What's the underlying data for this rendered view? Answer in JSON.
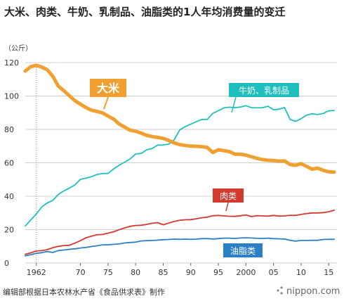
{
  "title": "大米、肉类、牛奶、乳制品、油脂类的1人年均消费量的变迁",
  "unit": "（公斤）",
  "source": "编辑部根据日本农林水产省《食品供求表》制作",
  "brand": "nippon.com",
  "chart_data": {
    "type": "line",
    "ylim": [
      0,
      120
    ],
    "xlim": [
      1960,
      2016.5
    ],
    "grid": true,
    "yticks": [
      0,
      20,
      40,
      60,
      80,
      100,
      120
    ],
    "x_tick_values": [
      1962,
      1970,
      1975,
      1980,
      1985,
      1990,
      1995,
      2000,
      2005,
      2010,
      2015
    ],
    "x_tick_labels": [
      "1962",
      "70",
      "75",
      "80",
      "85",
      "90",
      "95",
      "2000",
      "05",
      "10",
      "15"
    ],
    "x": [
      1960,
      1961,
      1962,
      1963,
      1964,
      1965,
      1966,
      1967,
      1968,
      1969,
      1970,
      1971,
      1972,
      1973,
      1974,
      1975,
      1976,
      1977,
      1978,
      1979,
      1980,
      1981,
      1982,
      1983,
      1984,
      1985,
      1986,
      1987,
      1988,
      1989,
      1990,
      1991,
      1992,
      1993,
      1994,
      1995,
      1996,
      1997,
      1998,
      1999,
      2000,
      2001,
      2002,
      2003,
      2004,
      2005,
      2006,
      2007,
      2008,
      2009,
      2010,
      2011,
      2012,
      2013,
      2014,
      2015,
      2016
    ],
    "series": [
      {
        "name": "大米",
        "color": "#f0a030",
        "values": [
          114.9,
          117.6,
          118.3,
          117.3,
          115.7,
          111.7,
          105.8,
          103.2,
          100.1,
          97.2,
          95.1,
          93.1,
          91.5,
          90.8,
          89.9,
          88.0,
          86.2,
          83.3,
          81.4,
          79.5,
          78.9,
          77.8,
          76.4,
          75.7,
          75.2,
          74.6,
          73.4,
          71.9,
          70.9,
          70.4,
          70.0,
          69.9,
          69.7,
          69.2,
          66.2,
          67.8,
          67.3,
          66.7,
          65.2,
          65.2,
          64.6,
          63.6,
          62.7,
          61.9,
          61.5,
          61.4,
          61.0,
          61.2,
          59.0,
          58.5,
          59.5,
          57.8,
          56.2,
          56.8,
          55.5,
          54.6,
          54.4
        ]
      },
      {
        "name": "牛奶、乳制品",
        "color": "#1fbfbf",
        "values": [
          22.2,
          25.8,
          29.4,
          33.6,
          36.0,
          37.5,
          41.1,
          43.2,
          44.9,
          46.8,
          50.1,
          50.8,
          51.7,
          53.0,
          53.6,
          53.6,
          56.3,
          58.5,
          60.4,
          62.3,
          65.3,
          65.6,
          67.8,
          68.5,
          70.6,
          70.6,
          71.2,
          73.8,
          79.7,
          81.7,
          83.2,
          84.6,
          86.0,
          86.0,
          89.6,
          91.2,
          92.9,
          93.3,
          93.0,
          93.4,
          94.2,
          93.0,
          92.9,
          93.0,
          93.9,
          91.8,
          92.1,
          93.1,
          86.0,
          84.8,
          86.4,
          88.6,
          89.4,
          88.9,
          89.5,
          91.1,
          91.3
        ]
      },
      {
        "name": "肉类",
        "color": "#d23a2e",
        "values": [
          5.2,
          6.1,
          7.2,
          7.4,
          8.0,
          9.2,
          10.0,
          10.5,
          10.6,
          11.9,
          13.4,
          15.1,
          16.1,
          16.9,
          17.1,
          17.9,
          18.7,
          19.9,
          21.0,
          22.0,
          22.5,
          22.6,
          23.1,
          23.8,
          24.2,
          22.9,
          23.9,
          24.9,
          25.6,
          25.9,
          26.0,
          26.5,
          27.1,
          27.5,
          28.3,
          28.5,
          28.2,
          28.0,
          27.9,
          28.3,
          28.8,
          27.8,
          28.4,
          28.2,
          28.1,
          28.5,
          28.1,
          28.2,
          28.6,
          28.5,
          29.1,
          29.6,
          30.0,
          30.0,
          30.2,
          30.7,
          31.6
        ]
      },
      {
        "name": "油脂类",
        "color": "#2c7fc4",
        "values": [
          4.3,
          5.0,
          5.8,
          6.2,
          6.9,
          6.3,
          7.5,
          7.8,
          8.2,
          8.5,
          9.0,
          9.3,
          9.9,
          10.3,
          10.9,
          10.9,
          11.2,
          11.4,
          12.0,
          12.3,
          12.5,
          13.2,
          13.4,
          13.5,
          13.7,
          14.0,
          14.1,
          14.3,
          14.2,
          14.3,
          14.2,
          14.3,
          14.6,
          14.6,
          14.4,
          14.6,
          14.9,
          14.9,
          14.7,
          15.0,
          15.1,
          15.0,
          14.8,
          14.7,
          14.9,
          14.6,
          14.5,
          14.4,
          13.6,
          13.1,
          13.5,
          13.5,
          13.6,
          13.6,
          14.1,
          14.2,
          14.2
        ]
      }
    ]
  }
}
